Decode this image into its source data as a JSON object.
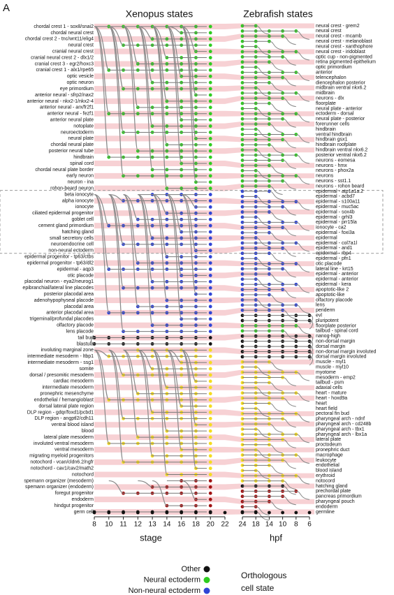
{
  "panel_label": "A",
  "xenopus": {
    "title": "Xenopus states",
    "axis_label": "stage",
    "ticks": [
      8,
      10,
      11,
      12,
      13,
      14,
      16,
      18,
      20,
      22
    ],
    "groups": [
      {
        "color": "#2ecc1f",
        "labels": [
          "chordal crest 1 - sox8/snai2",
          "chordal neural crest",
          "chordal crest 2 - tnc/wnt11/elig4",
          "neural crest",
          "cranial neural crest",
          "cranial neural crest 2 - dlx1/2",
          "cranial crest 3 - egr2/hoxc3",
          "cranial crest 1 - alx1/rpe65",
          "optic vesicle",
          "optic neuron",
          "eye primordium",
          "anterior neural - sfrp2/nax2",
          "anterior neural - nkx2-1/nkx2-4",
          "anterior neural - arx/fr2f1",
          "anterior neural - fezf1",
          "anterior neural plate",
          "notoplate",
          "neuroectoderm",
          "neural plate",
          "chordal neural plate",
          "posterior neural tube",
          "hindbrain",
          "spinal cord",
          "chordal neural plate border",
          "early neuron",
          "neuron - ina",
          "rohon-beard neuron"
        ]
      },
      {
        "color": "#2f44d6",
        "labels": [
          "beta ionocyte",
          "alpha ionocyte",
          "ionocyte",
          "ciliated epidermal progenitor",
          "goblet cell",
          "cement gland primordium",
          "hatching gland",
          "small secretory cells",
          "neuroendocrine cell",
          "non-neural ectoderm",
          "epidermal progenitor - tp63/ctbs",
          "epidermal progenitor - tp63/dl2",
          "epidermal - aqp3",
          "otic placode",
          "placodal neuron - eya2/neurog1",
          "epibranchial/lateral line placodes",
          "posterior placodal area",
          "adenohypophyseal placode",
          "placodal area",
          "anterior placodal area",
          "trigeminal/profundal placodes",
          "olfactory placode",
          "lens placode"
        ]
      },
      {
        "color": "#111111",
        "labels": [
          "tail bud",
          "blastula"
        ]
      },
      {
        "color": "#f5dc1e",
        "labels": [
          "involuting marginal zone",
          "intermediate mesoderm - ltbp1",
          "intermediate mesoderm - ssg1",
          "somite",
          "dorsal / presomitic mesoderm",
          "cardiac mesoderm",
          "intermediate mesoderm",
          "pronephric mesenchyme",
          "endothelial / hemangioblast",
          "dorsal lateral plate region",
          "DLP region - gdqr/foxd1/pcbd1",
          "DLP region - angptl2/cdh11",
          "ventral blood island",
          "blood",
          "lateral plate mesoderm",
          "involuted ventral mesoderm",
          "ventral mesoderm",
          "migrating myeloid progenitors",
          "notochord - vcan/cldn6.2/ngfr",
          "notochord - cav1/cav2/math2",
          "notochord"
        ]
      },
      {
        "color": "#a11212",
        "labels": [
          "spemann organizer (mesoderm)",
          "spemann organizer (endoderm)",
          "foregut progenitor",
          "endoderm",
          "hindgut progenitor"
        ]
      },
      {
        "color": "#111111",
        "labels": [
          "germ cell"
        ]
      }
    ]
  },
  "zebrafish": {
    "title": "Zebrafish states",
    "axis_label": "hpf",
    "ticks": [
      24,
      18,
      14,
      10,
      8,
      6
    ],
    "groups": [
      {
        "color": "#2ecc1f",
        "labels": [
          "neural crest - grem2",
          "neural crest",
          "neural crest - mcamb",
          "neural crest - melanoblast",
          "neural crest - xanthophore",
          "neural crest - iridoblast",
          "optic cup - non-pigmented",
          "retina pigmented epithelium",
          "optic primordium",
          "anterior",
          "telencephalon",
          "diencephalon posterior",
          "midbrain ventral nkx6.2",
          "midbrain",
          "neurons - dlx",
          "floorplate",
          "neural plate - anterior",
          "ectoderm - dorsal",
          "neural plate - posterior",
          "forerunner cells",
          "hindbrain",
          "ventral hindbrain",
          "hindbrain gsx1",
          "hindbrain roofplate",
          "hindbrain ventral nkx6.2",
          "posterior ventral nkx6.2",
          "neurons - eomesa",
          "neurons - hmx",
          "neurons - phox2a",
          "neurons",
          "neurons - sst1.1",
          "neurons - rohon beard"
        ]
      },
      {
        "color": "#2f44d6",
        "labels": [
          "epidermal - atp1a1a.2",
          "epidermal - acbd7",
          "epidermal - s100a11",
          "epidermal - muc5ac",
          "epidermal - sox4b",
          "epidermal - grhl3",
          "epidermal - prr15la",
          "ionocyte - ca2",
          "epidermal - foxi3a",
          "epidermal",
          "epidermal - col7a1l",
          "epidermal - and1",
          "epidermal - rbp4",
          "epidermal - pfn1",
          "otic placode",
          "lateral line - krt15",
          "epidermal - anterior",
          "epidermal - anterior",
          "epidermal - kera",
          "apoptotic-like 2",
          "apoptotic-like",
          "olfactory placode",
          "lens",
          "periderm"
        ]
      },
      {
        "color": "#111111",
        "labels": [
          "evl",
          "pluripotent"
        ]
      },
      {
        "color": "#2ecc1f",
        "labels": [
          "floorplate posterior",
          "tailbud - spinal cord"
        ]
      },
      {
        "color": "#111111",
        "labels": [
          "nanog-high",
          "non-dorsal margin",
          "dorsal margin",
          "non-dorsal margin involuted",
          "dorsal margin involuted"
        ]
      },
      {
        "color": "#f5dc1e",
        "labels": [
          "muscle - myl1",
          "muscle - myl10",
          "myotome",
          "mesoderm - emp2",
          "tailbud - psm",
          "adaxial cells",
          "heart - mature",
          "heart - hoxd9a",
          "heart",
          "heart field",
          "pectoral fin bud",
          "pharyngeal arch - ndnf",
          "pharyngeal arch - cd248b",
          "pharyngeal arch - tbx1",
          "pharyngeal arch - lbx1a",
          "lateral plate",
          "proctodeum",
          "pronephric duct",
          "macrophage",
          "leukocyte",
          "endothelial",
          "blood island",
          "erythroid",
          "notocord"
        ]
      },
      {
        "color": "#111111",
        "labels": [
          "hatching gland"
        ]
      },
      {
        "color": "#a11212",
        "labels": [
          "prechordal plate",
          "pancreas primordium",
          "pharyngeal pouch",
          "endoderm"
        ]
      },
      {
        "color": "#111111",
        "labels": [
          "germline"
        ]
      }
    ]
  },
  "legend": {
    "items": [
      {
        "name": "Other",
        "color": "#111111"
      },
      {
        "name": "Neural ectoderm",
        "color": "#2ecc1f"
      },
      {
        "name": "Non-neural ectoderm",
        "color": "#2f44d6"
      }
    ],
    "note": "Orthologous cell state"
  }
}
